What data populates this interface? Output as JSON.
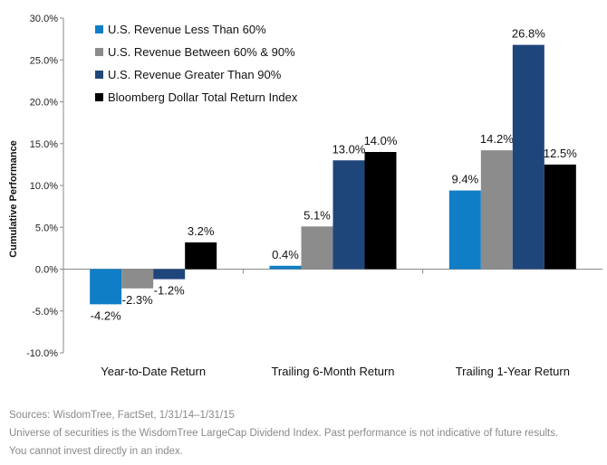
{
  "chart_data": {
    "type": "bar",
    "categories": [
      "Year-to-Date Return",
      "Trailing 6-Month Return",
      "Trailing 1-Year Return"
    ],
    "series": [
      {
        "name": "U.S. Revenue Less Than 60%",
        "color": "#0f7ec6",
        "values": [
          -4.2,
          0.4,
          9.4
        ],
        "labels": [
          "-4.2%",
          "0.4%",
          "9.4%"
        ]
      },
      {
        "name": "U.S. Revenue Between 60% & 90%",
        "color": "#8c8c8c",
        "values": [
          -2.3,
          5.1,
          14.2
        ],
        "labels": [
          "-2.3%",
          "5.1%",
          "14.2%"
        ]
      },
      {
        "name": "U.S. Revenue Greater Than 90%",
        "color": "#1f467b",
        "values": [
          -1.2,
          13.0,
          26.8
        ],
        "labels": [
          "-1.2%",
          "13.0%",
          "26.8%"
        ]
      },
      {
        "name": "Bloomberg Dollar Total Return Index",
        "color": "#000000",
        "values": [
          3.2,
          14.0,
          12.5
        ],
        "labels": [
          "3.2%",
          "14.0%",
          "12.5%"
        ]
      }
    ],
    "ylabel": "Cumulative Performance",
    "xlabel": "",
    "ylim": [
      -10,
      30
    ],
    "yticks": [
      -10,
      -5,
      0,
      5,
      10,
      15,
      20,
      25,
      30
    ],
    "ytick_labels": [
      "-10.0%",
      "-5.0%",
      "0.0%",
      "5.0%",
      "10.0%",
      "15.0%",
      "20.0%",
      "25.0%",
      "30.0%"
    ],
    "grid": false,
    "legend_position": "top-left"
  },
  "footer": {
    "sources": "Sources: WisdomTree, FactSet, 1/31/14–1/31/15",
    "note1": "Universe of securities is the WisdomTree LargeCap Dividend Index. Past performance is not indicative of future results.",
    "note2": "You cannot invest directly in an index."
  }
}
